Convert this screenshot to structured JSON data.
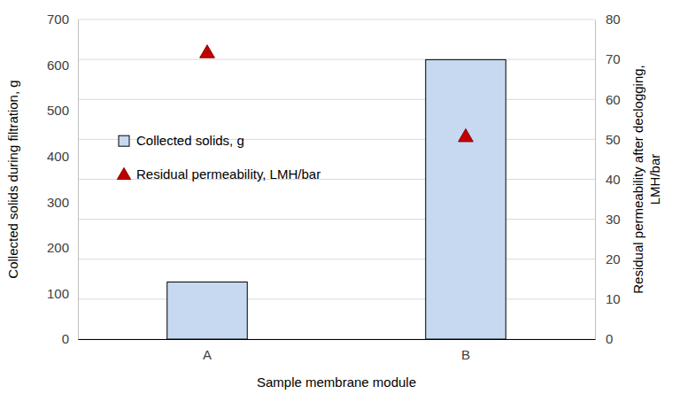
{
  "chart_data": {
    "type": "bar",
    "categories": [
      "A",
      "B"
    ],
    "series": [
      {
        "name": "Collected solids, g",
        "type": "bar",
        "color": "#c6d9f1",
        "values": [
          125,
          612
        ]
      },
      {
        "name": "Residual permeability, LMH/bar",
        "type": "scatter",
        "marker": "triangle",
        "color": "#c00000",
        "axis": "y2",
        "values": [
          71.5,
          50.5
        ]
      }
    ],
    "x_label": "Sample membrane module",
    "y_label": "Collected solids during filtration, g",
    "y2_label": [
      "Residual permeability after declogging,",
      "LMH/bar"
    ],
    "ylim": [
      0,
      700
    ],
    "yticks": [
      0,
      100,
      200,
      300,
      400,
      500,
      600,
      700
    ],
    "y2lim": [
      0,
      80
    ],
    "y2ticks": [
      0,
      10,
      20,
      30,
      40,
      50,
      60,
      70,
      80
    ],
    "grid": "y2",
    "legend": "left"
  }
}
